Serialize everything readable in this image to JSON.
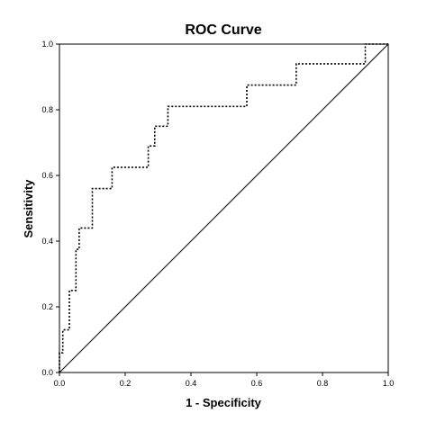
{
  "chart_data": {
    "type": "line",
    "title": "ROC Curve",
    "xlabel": "1 - Specificity",
    "ylabel": "Sensitivity",
    "xlim": [
      0.0,
      1.0
    ],
    "ylim": [
      0.0,
      1.0
    ],
    "x_ticks": [
      "0.0",
      "0.2",
      "0.4",
      "0.6",
      "0.8",
      "1.0"
    ],
    "y_ticks": [
      "0.0",
      "0.2",
      "0.4",
      "0.6",
      "0.8",
      "1.0"
    ],
    "grid": false,
    "legend": "none",
    "series": [
      {
        "line_style": "dotted",
        "color": "#000000",
        "x": [
          0.0,
          0.0,
          0.01,
          0.01,
          0.03,
          0.03,
          0.05,
          0.05,
          0.06,
          0.06,
          0.07,
          0.07,
          0.1,
          0.1,
          0.16,
          0.16,
          0.27,
          0.27,
          0.29,
          0.29,
          0.33,
          0.33,
          0.57,
          0.57,
          0.72,
          0.72,
          0.93,
          0.93,
          1.0
        ],
        "y": [
          0.0,
          0.06,
          0.06,
          0.13,
          0.13,
          0.25,
          0.25,
          0.375,
          0.375,
          0.44,
          0.44,
          0.44,
          0.44,
          0.56,
          0.56,
          0.625,
          0.625,
          0.69,
          0.69,
          0.75,
          0.75,
          0.81,
          0.81,
          0.875,
          0.875,
          0.94,
          0.94,
          1.0,
          1.0
        ]
      },
      {
        "line_style": "solid",
        "color": "#000000",
        "x": [
          0.0,
          1.0
        ],
        "y": [
          0.0,
          1.0
        ]
      }
    ]
  }
}
